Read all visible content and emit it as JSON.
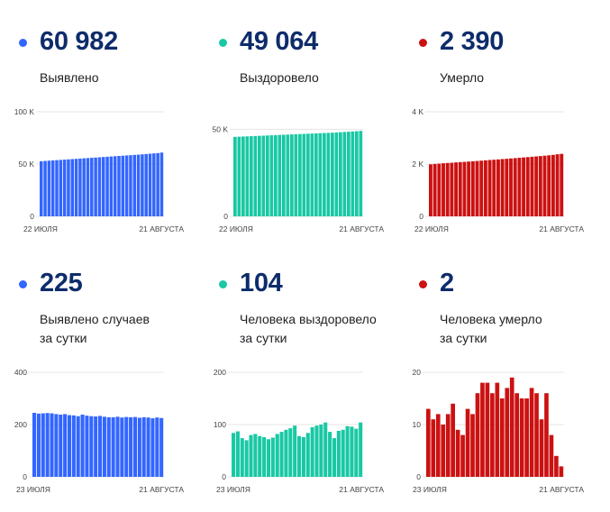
{
  "panels": [
    {
      "id": "detected-total",
      "color": "#3366ff",
      "value": "60 982",
      "label_lines": [
        "Выявлено"
      ],
      "chart_data": {
        "type": "bar",
        "x_start": "22 ИЮЛЯ",
        "x_end": "21 АВГУСТА",
        "yticks": [
          {
            "v": 0,
            "label": "0"
          },
          {
            "v": 50000,
            "label": "50 K"
          },
          {
            "v": 100000,
            "label": "100 K"
          }
        ],
        "ylim": [
          0,
          100000
        ],
        "values": [
          52700,
          53000,
          53250,
          53500,
          53750,
          54000,
          54250,
          54500,
          54750,
          55000,
          55250,
          55500,
          55750,
          56000,
          56250,
          56500,
          56750,
          57000,
          57250,
          57500,
          57750,
          58000,
          58250,
          58500,
          58750,
          59000,
          59300,
          59600,
          59900,
          60200,
          60500,
          60982
        ]
      }
    },
    {
      "id": "recovered-total",
      "color": "#19c8a4",
      "value": "49 064",
      "label_lines": [
        "Выздоровело"
      ],
      "chart_data": {
        "type": "bar",
        "x_start": "22 ИЮЛЯ",
        "x_end": "21 АВГУСТА",
        "yticks": [
          {
            "v": 0,
            "label": "0"
          },
          {
            "v": 50000,
            "label": "50 K"
          }
        ],
        "ylim": [
          0,
          60000
        ],
        "values": [
          45600,
          45700,
          45800,
          45900,
          46000,
          46100,
          46200,
          46300,
          46400,
          46500,
          46600,
          46700,
          46800,
          46900,
          47000,
          47100,
          47200,
          47300,
          47400,
          47500,
          47600,
          47700,
          47800,
          47900,
          48000,
          48100,
          48250,
          48400,
          48550,
          48700,
          48850,
          49064
        ]
      }
    },
    {
      "id": "deaths-total",
      "color": "#cc1111",
      "value": "2 390",
      "label_lines": [
        "Умерло"
      ],
      "chart_data": {
        "type": "bar",
        "x_start": "22 ИЮЛЯ",
        "x_end": "21 АВГУСТА",
        "yticks": [
          {
            "v": 0,
            "label": "0"
          },
          {
            "v": 2000,
            "label": "2 K"
          },
          {
            "v": 4000,
            "label": "4 K"
          }
        ],
        "ylim": [
          0,
          4000
        ],
        "values": [
          1990,
          2005,
          2017,
          2030,
          2041,
          2050,
          2063,
          2074,
          2085,
          2096,
          2108,
          2118,
          2130,
          2143,
          2155,
          2166,
          2178,
          2191,
          2202,
          2215,
          2228,
          2240,
          2253,
          2266,
          2279,
          2292,
          2306,
          2320,
          2335,
          2350,
          2374,
          2390
        ]
      }
    },
    {
      "id": "detected-daily",
      "color": "#3366ff",
      "value": "225",
      "label_lines": [
        "Выявлено случаев",
        "за сутки"
      ],
      "chart_data": {
        "type": "bar",
        "x_start": "23 ИЮЛЯ",
        "x_end": "21 АВГУСТА",
        "yticks": [
          {
            "v": 0,
            "label": "0"
          },
          {
            "v": 200,
            "label": "200"
          },
          {
            "v": 400,
            "label": "400"
          }
        ],
        "ylim": [
          0,
          400
        ],
        "values": [
          245,
          242,
          243,
          244,
          243,
          240,
          238,
          240,
          236,
          235,
          232,
          238,
          234,
          232,
          231,
          233,
          230,
          228,
          228,
          230,
          227,
          229,
          228,
          229,
          226,
          228,
          227,
          224,
          227,
          225
        ]
      }
    },
    {
      "id": "recovered-daily",
      "color": "#19c8a4",
      "value": "104",
      "label_lines": [
        "Человека выздоровело",
        "за сутки"
      ],
      "chart_data": {
        "type": "bar",
        "x_start": "23 ИЮЛЯ",
        "x_end": "21 АВГУСТА",
        "yticks": [
          {
            "v": 0,
            "label": "0"
          },
          {
            "v": 100,
            "label": "100"
          },
          {
            "v": 200,
            "label": "200"
          }
        ],
        "ylim": [
          0,
          200
        ],
        "values": [
          84,
          87,
          74,
          70,
          80,
          82,
          78,
          76,
          72,
          75,
          82,
          86,
          90,
          93,
          98,
          78,
          76,
          84,
          95,
          98,
          100,
          104,
          86,
          74,
          88,
          90,
          97,
          96,
          92,
          104
        ]
      }
    },
    {
      "id": "deaths-daily",
      "color": "#cc1111",
      "value": "2",
      "label_lines": [
        "Человека умерло",
        "за сутки"
      ],
      "chart_data": {
        "type": "bar",
        "x_start": "23 ИЮЛЯ",
        "x_end": "21 АВГУСТА",
        "yticks": [
          {
            "v": 0,
            "label": "0"
          },
          {
            "v": 10,
            "label": "10"
          },
          {
            "v": 20,
            "label": "20"
          }
        ],
        "ylim": [
          0,
          20
        ],
        "values": [
          13,
          11,
          12,
          10,
          12,
          14,
          9,
          8,
          13,
          12,
          16,
          18,
          18,
          16,
          18,
          15,
          17,
          19,
          16,
          15,
          15,
          17,
          16,
          11,
          16,
          8,
          4,
          2
        ]
      }
    }
  ]
}
